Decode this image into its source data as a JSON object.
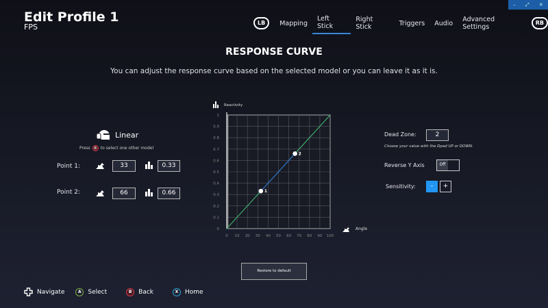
{
  "window": {
    "controls": [
      "–",
      "⤢",
      "✕"
    ],
    "accent": "#1d5ea8"
  },
  "header": {
    "title": "Edit Profile 1",
    "subtitle": "FPS"
  },
  "nav": {
    "left_bumper": "LB",
    "right_bumper": "RB",
    "tabs": [
      {
        "label": "Mapping"
      },
      {
        "label": "Left Stick",
        "active": true
      },
      {
        "label": "Right Stick"
      },
      {
        "label": "Triggers"
      },
      {
        "label": "Audio"
      },
      {
        "label": "Advanced Settings"
      }
    ]
  },
  "main": {
    "heading": "RESPONSE CURVE",
    "description": "You can adjust the response curve based on the selected model or you can leave it as it is."
  },
  "model": {
    "name": "Linear",
    "hint_press": "Press",
    "hint_button": "B",
    "hint_rest": "to select one other model"
  },
  "points": [
    {
      "label": "Point 1:",
      "angle": "33",
      "reactivity": "0.33"
    },
    {
      "label": "Point 2:",
      "angle": "66",
      "reactivity": "0.66"
    }
  ],
  "chart_data": {
    "type": "line",
    "ylabel": "Reactivity",
    "xlabel": "Angle",
    "xlim": [
      0,
      100
    ],
    "ylim": [
      0,
      1
    ],
    "grid": true,
    "x_ticks": [
      "0",
      "10",
      "20",
      "30",
      "40",
      "50",
      "60",
      "70",
      "80",
      "90",
      "100"
    ],
    "y_ticks": [
      "0",
      "0.1",
      "0.2",
      "0.3",
      "0.4",
      "0.5",
      "0.6",
      "0.7",
      "0.8",
      "0.9",
      "1"
    ],
    "series": [
      {
        "points": [
          [
            0,
            0
          ],
          [
            33,
            0.33
          ],
          [
            66,
            0.66
          ],
          [
            100,
            1
          ]
        ],
        "color": "#3fae6a",
        "highlight_color": "#2f78c8"
      }
    ],
    "control_points": [
      {
        "label": "1",
        "x": 33,
        "y": 0.33
      },
      {
        "label": "2",
        "x": 66,
        "y": 0.66
      }
    ],
    "dead_zone": 2
  },
  "settings": {
    "dead_zone_label": "Dead Zone:",
    "dead_zone_value": "2",
    "dead_zone_hint": "Choose your value with the Dpad UP or DOWN.",
    "reverse_label": "Reverse Y Axis",
    "reverse_value": "Off",
    "sensitivity_label": "Sensitivity:",
    "minus": "-",
    "plus": "+",
    "accent": "#2196f3"
  },
  "restore_label": "Restore to default",
  "footer": [
    {
      "button": "",
      "label": "Navigate"
    },
    {
      "button": "A",
      "label": "Select",
      "color": "#7cb342"
    },
    {
      "button": "B",
      "label": "Back",
      "color": "#d33c4a"
    },
    {
      "button": "X",
      "label": "Home",
      "color": "#2aa7d8"
    }
  ]
}
